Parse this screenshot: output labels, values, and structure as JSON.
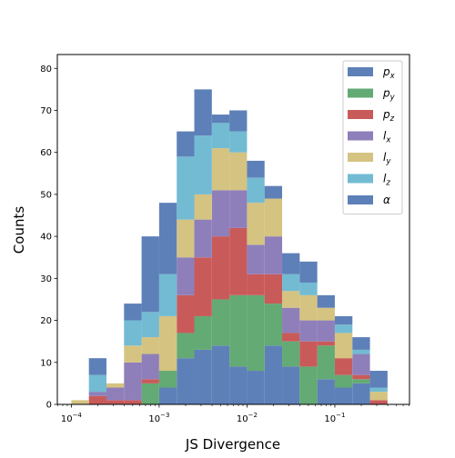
{
  "chart_data": {
    "type": "bar",
    "subtype": "stacked-histogram",
    "title": "",
    "xlabel": "JS Divergence",
    "ylabel": "Counts",
    "xscale": "log",
    "xlim": [
      6.93e-05,
      0.708
    ],
    "ylim": [
      0,
      83.3
    ],
    "x_ticks": [
      {
        "value": 0.0001,
        "base": "10",
        "exp": "−4"
      },
      {
        "value": 0.001,
        "base": "10",
        "exp": "−3"
      },
      {
        "value": 0.01,
        "base": "10",
        "exp": "−2"
      },
      {
        "value": 0.1,
        "base": "10",
        "exp": "−1"
      }
    ],
    "y_ticks": [
      0,
      10,
      20,
      30,
      40,
      50,
      60,
      70,
      80
    ],
    "legend_position": "top-right",
    "bin_edges": [
      0.0001,
      0.0001585,
      0.0002512,
      0.0003981,
      0.000631,
      0.001,
      0.001585,
      0.002512,
      0.003981,
      0.00631,
      0.01,
      0.01585,
      0.02512,
      0.03981,
      0.0631,
      0.1,
      0.1585,
      0.2512,
      0.3981
    ],
    "series": [
      {
        "name": "p",
        "sub": "x",
        "color": "#5e80b8",
        "values": [
          0,
          0,
          0,
          0,
          0,
          4,
          11,
          13,
          14,
          9,
          8,
          14,
          9,
          0,
          6,
          4,
          5,
          0
        ]
      },
      {
        "name": "p",
        "sub": "y",
        "color": "#63aa74",
        "values": [
          0,
          0,
          0,
          0,
          5,
          4,
          6,
          8,
          11,
          17,
          18,
          10,
          6,
          9,
          8,
          3,
          1,
          0
        ]
      },
      {
        "name": "p",
        "sub": "z",
        "color": "#c95a5a",
        "values": [
          0,
          2,
          1,
          1,
          1,
          0,
          9,
          14,
          15,
          16,
          5,
          7,
          2,
          6,
          1,
          4,
          1,
          1
        ]
      },
      {
        "name": "l",
        "sub": "x",
        "color": "#8e7fba",
        "values": [
          0,
          1,
          3,
          9,
          6,
          0,
          9,
          9,
          11,
          9,
          7,
          9,
          6,
          5,
          5,
          0,
          5,
          0
        ]
      },
      {
        "name": "l",
        "sub": "y",
        "color": "#d5c381",
        "values": [
          1,
          0,
          1,
          4,
          4,
          13,
          9,
          6,
          10,
          9,
          10,
          9,
          4,
          6,
          3,
          6,
          0,
          2
        ]
      },
      {
        "name": "l",
        "sub": "z",
        "color": "#73bbd3",
        "values": [
          0,
          4,
          0,
          6,
          6,
          10,
          15,
          14,
          6,
          5,
          6,
          0,
          4,
          3,
          0,
          2,
          1,
          1
        ]
      },
      {
        "name": "α",
        "sub": "",
        "color": "#5e80b8",
        "values": [
          0,
          4,
          0,
          4,
          18,
          17,
          6,
          11,
          2,
          5,
          4,
          3,
          5,
          5,
          3,
          2,
          3,
          4
        ]
      }
    ]
  }
}
